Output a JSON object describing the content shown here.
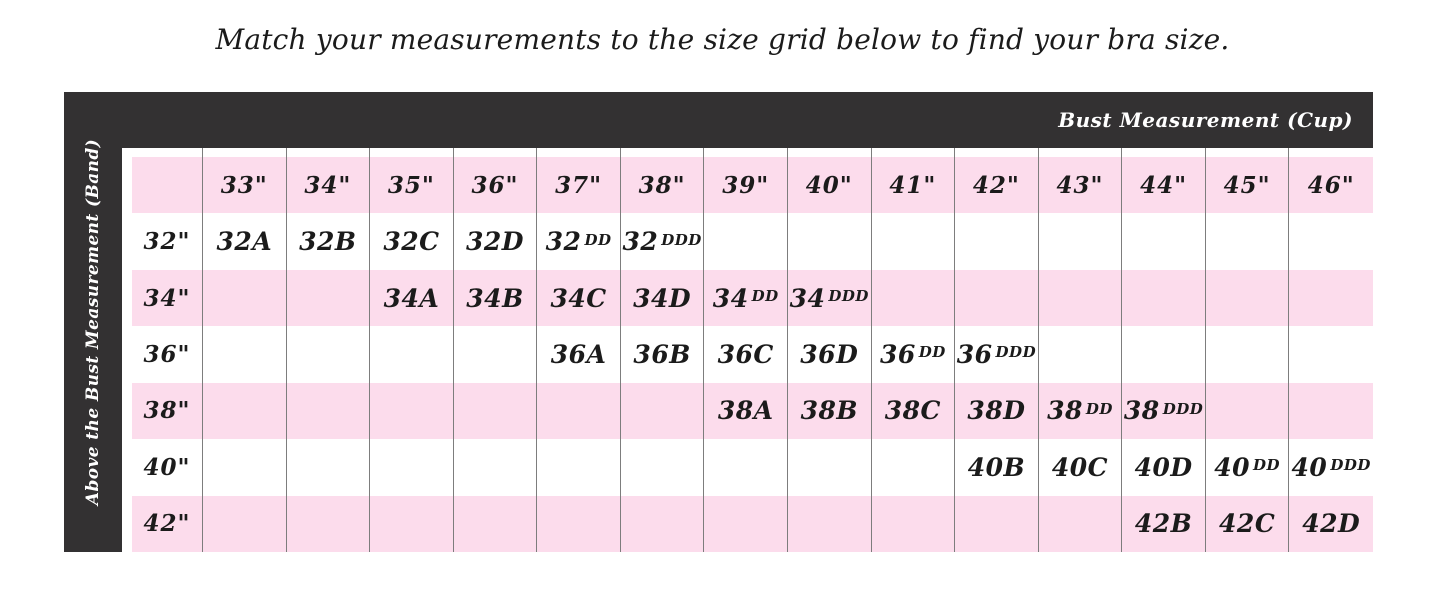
{
  "title": "Match your measurements to the size grid below to find your bra size.",
  "colors": {
    "pink": "#fcdcec",
    "dark": "#333132",
    "gridline": "#7d7d7d",
    "text": "#1b1b1b"
  },
  "axes": {
    "top_label": "Bust Measurement (Cup)",
    "left_label": "Above the Bust Measurement (Band)"
  },
  "chart_data": {
    "type": "table",
    "title": "Match your measurements to the size grid below to find your bra size.",
    "column_axis_label": "Bust Measurement (Cup)",
    "row_axis_label": "Above the Bust Measurement (Band)",
    "corner_cell": "",
    "columns": [
      "33\"",
      "34\"",
      "35\"",
      "36\"",
      "37\"",
      "38\"",
      "39\"",
      "40\"",
      "41\"",
      "42\"",
      "43\"",
      "44\"",
      "45\"",
      "46\""
    ],
    "rows": [
      {
        "band": "32\"",
        "cells": [
          "32A",
          "32B",
          "32C",
          "32D",
          "32DD",
          "32DDD",
          "",
          "",
          "",
          "",
          "",
          "",
          "",
          ""
        ]
      },
      {
        "band": "34\"",
        "cells": [
          "",
          "",
          "34A",
          "34B",
          "34C",
          "34D",
          "34DD",
          "34DDD",
          "",
          "",
          "",
          "",
          "",
          ""
        ]
      },
      {
        "band": "36\"",
        "cells": [
          "",
          "",
          "",
          "",
          "36A",
          "36B",
          "36C",
          "36D",
          "36DD",
          "36DDD",
          "",
          "",
          "",
          ""
        ]
      },
      {
        "band": "38\"",
        "cells": [
          "",
          "",
          "",
          "",
          "",
          "",
          "38A",
          "38B",
          "38C",
          "38D",
          "38DD",
          "38DDD",
          "",
          ""
        ]
      },
      {
        "band": "40\"",
        "cells": [
          "",
          "",
          "",
          "",
          "",
          "",
          "",
          "",
          "",
          "40B",
          "40C",
          "40D",
          "40DD",
          "40DDD"
        ]
      },
      {
        "band": "42\"",
        "cells": [
          "",
          "",
          "",
          "",
          "",
          "",
          "",
          "",
          "",
          "",
          "",
          "42B",
          "42C",
          "42D"
        ]
      }
    ],
    "layout_hints": {
      "row_background_alternation": [
        "pink-header",
        "white",
        "pink",
        "white",
        "pink",
        "white",
        "pink"
      ],
      "gridlines": "vertical-only",
      "small_suffix_rule": "DD and DDD cup suffixes rendered smaller than the band number"
    }
  }
}
